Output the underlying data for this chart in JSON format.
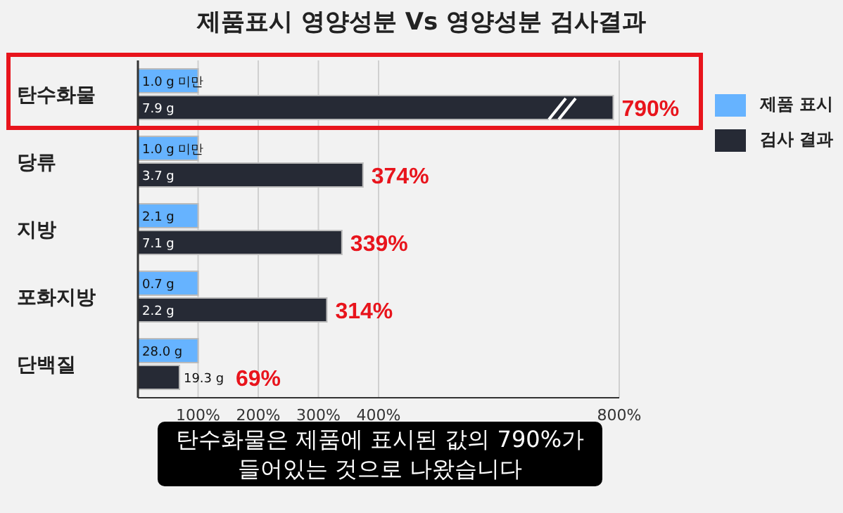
{
  "chart_data": {
    "type": "bar",
    "orientation": "horizontal",
    "title": "제품표시 영양성분 Vs 영양성분 검사결과",
    "categories": [
      "탄수화물",
      "당류",
      "지방",
      "포화지방",
      "단백질"
    ],
    "series": [
      {
        "name": "제품 표시",
        "color": "#66b3ff",
        "values": [
          100,
          100,
          100,
          100,
          100
        ]
      },
      {
        "name": "검사 결과",
        "color": "#262a35",
        "values": [
          790,
          374,
          339,
          314,
          69
        ],
        "value_labels": [
          "790%",
          "374%",
          "339%",
          "314%",
          "69%"
        ]
      }
    ],
    "xlim": [
      0,
      800
    ],
    "xticks": [
      {
        "value": 100,
        "label": "100%"
      },
      {
        "value": 200,
        "label": "200%"
      },
      {
        "value": 300,
        "label": "300%"
      },
      {
        "value": 400,
        "label": "400%"
      },
      {
        "value": 800,
        "label": "800%"
      }
    ],
    "grid": "x",
    "legend": "right",
    "annotations": [
      "1.0 g 미만",
      "1.0 g 미만",
      "2.1 g",
      "0.7 g",
      "28.0 g",
      "7.9 g",
      "3.7 g",
      "7.1 g",
      "2.2 g",
      "19.3 g",
      "탄수화물은 제품에 표시된 값의 790%가\n들어있는 것으로 나왔습니다"
    ]
  }
}
